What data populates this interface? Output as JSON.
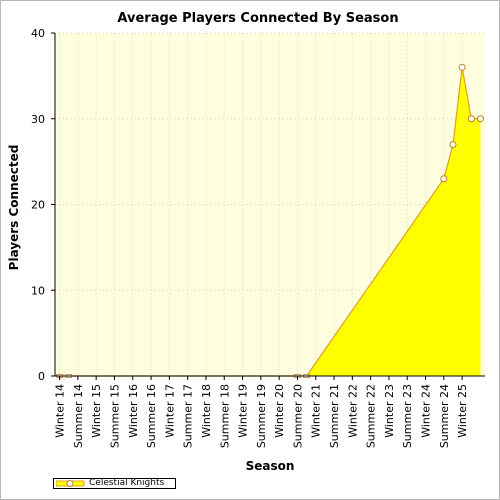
{
  "chart_data": {
    "type": "area",
    "title": "Average Players Connected By Season",
    "xlabel": "Season",
    "ylabel": "Players Connected",
    "ylim": [
      0,
      40
    ],
    "yticks": [
      0,
      10,
      20,
      30,
      40
    ],
    "grid": true,
    "legend_position": "bottom-left",
    "categories": [
      "Winter 14",
      "Summer 14",
      "Winter 15",
      "Summer 15",
      "Winter 16",
      "Summer 16",
      "Winter 17",
      "Summer 17",
      "Winter 18",
      "Summer 18",
      "Winter 19",
      "Summer 19",
      "Winter 20",
      "Summer 20",
      "Winter 21",
      "Summer 21",
      "Winter 22",
      "Summer 22",
      "Winter 23",
      "Summer 23",
      "Winter 24",
      "Summer 24",
      "Winter 25"
    ],
    "series": [
      {
        "name": "Celestial Knights",
        "color": "#ffff00",
        "line_color": "#e0a020",
        "points": [
          {
            "x": 0,
            "y": 0
          },
          {
            "x": 0.5,
            "y": 0
          },
          {
            "x": 13,
            "y": 0
          },
          {
            "x": 13.5,
            "y": 0
          },
          {
            "x": 21,
            "y": 23
          },
          {
            "x": 21.5,
            "y": 27
          },
          {
            "x": 22,
            "y": 36
          },
          {
            "x": 22.5,
            "y": 30
          },
          {
            "x": 23,
            "y": 30
          }
        ]
      }
    ]
  }
}
